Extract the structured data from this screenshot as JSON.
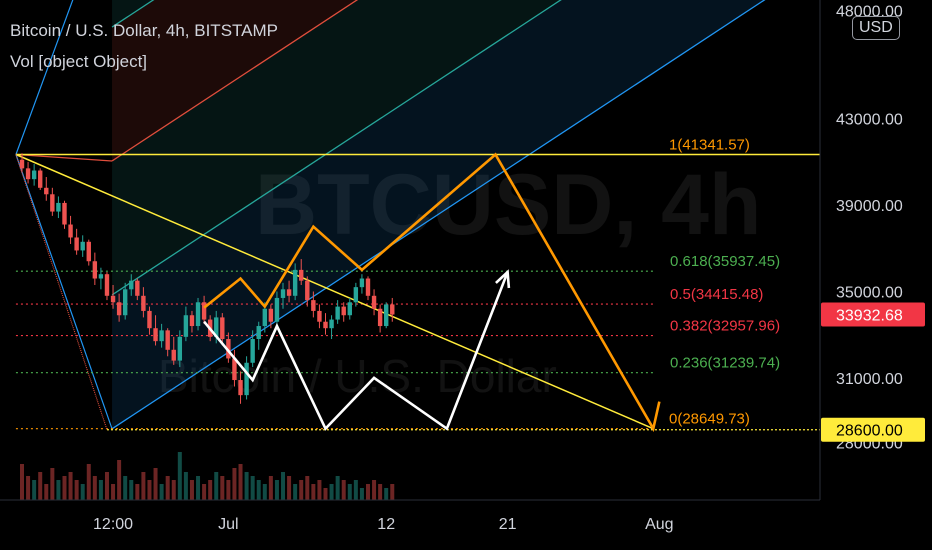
{
  "header": {
    "title": "Bitcoin / U.S. Dollar, 4h, BITSTAMP",
    "volume_label": "Vol [object Object]",
    "currency": "USD"
  },
  "watermark": {
    "symbol": "BTCUSD, 4h",
    "name": "Bitcoin / U.S. Dollar"
  },
  "colors": {
    "background": "#000000",
    "text": "#d1d4dc",
    "yellow": "#ffeb3b",
    "orange": "#ff9800",
    "pitchfork_blue": "#2196f3",
    "pitchfork_red": "#e04e3c",
    "pitchfork_teal": "#26a69a",
    "fib_green": "#4caf50",
    "fib_red": "#f23645",
    "candle_up": "#26a69a",
    "candle_down": "#ef5350",
    "last_price_bg": "#f23645",
    "level_bg": "#ffeb3b"
  },
  "chart_data": {
    "type": "candlestick",
    "symbol": "BTCUSD",
    "exchange": "BITSTAMP",
    "timeframe": "4h",
    "x_labels": [
      "12:00",
      "Jul",
      "12",
      "21",
      "Aug"
    ],
    "y_ticks": [
      48000,
      43000,
      39000,
      35000,
      31000,
      28000
    ],
    "y_tick_labels": [
      "48000.00",
      "43000.00",
      "39000.00",
      "35000.00",
      "31000.00",
      "28000.00"
    ],
    "last_price": 33932.68,
    "last_price_label": "33932.68",
    "horizontal_level": 28600,
    "horizontal_level_label": "28600.00",
    "fib_retracement": [
      {
        "ratio": 1,
        "price": 41341.57,
        "label": "1(41341.57)",
        "color": "#ff9800"
      },
      {
        "ratio": 0.618,
        "price": 35937.45,
        "label": "0.618(35937.45)",
        "color": "#4caf50"
      },
      {
        "ratio": 0.5,
        "price": 34415.48,
        "label": "0.5(34415.48)",
        "color": "#f23645"
      },
      {
        "ratio": 0.382,
        "price": 32957.96,
        "label": "0.382(32957.96)",
        "color": "#f23645"
      },
      {
        "ratio": 0.236,
        "price": 31239.74,
        "label": "0.236(31239.74)",
        "color": "#4caf50"
      },
      {
        "ratio": 0,
        "price": 28649.73,
        "label": "0(28649.73)",
        "color": "#ff9800"
      }
    ],
    "candles": [
      [
        41100,
        41400,
        40500,
        40700
      ],
      [
        40700,
        41000,
        40000,
        40200
      ],
      [
        40200,
        40900,
        39900,
        40600
      ],
      [
        40600,
        40700,
        39700,
        39800
      ],
      [
        39800,
        40300,
        39200,
        39500
      ],
      [
        39500,
        39800,
        38500,
        38700
      ],
      [
        38700,
        39400,
        38400,
        39100
      ],
      [
        39100,
        39200,
        37900,
        38100
      ],
      [
        38100,
        38500,
        37200,
        37500
      ],
      [
        37500,
        37900,
        36700,
        36900
      ],
      [
        36900,
        37600,
        36600,
        37300
      ],
      [
        37300,
        37400,
        36200,
        36400
      ],
      [
        36400,
        36800,
        35300,
        35600
      ],
      [
        35600,
        36100,
        35100,
        35800
      ],
      [
        35800,
        35900,
        34600,
        34800
      ],
      [
        34800,
        35300,
        34200,
        34500
      ],
      [
        34500,
        34900,
        33600,
        33900
      ],
      [
        33900,
        35400,
        33700,
        35100
      ],
      [
        35100,
        35800,
        34800,
        35500
      ],
      [
        35500,
        35600,
        34600,
        34800
      ],
      [
        34800,
        35200,
        33800,
        34100
      ],
      [
        34100,
        34300,
        33000,
        33300
      ],
      [
        33300,
        33900,
        32500,
        32700
      ],
      [
        32700,
        33500,
        32400,
        33200
      ],
      [
        33200,
        33300,
        32000,
        32300
      ],
      [
        32300,
        32900,
        31600,
        31800
      ],
      [
        31800,
        33200,
        31500,
        32900
      ],
      [
        32900,
        34300,
        32700,
        33900
      ],
      [
        33900,
        34100,
        33100,
        33400
      ],
      [
        33400,
        34700,
        33200,
        34500
      ],
      [
        34500,
        34800,
        33500,
        33700
      ],
      [
        33700,
        33900,
        32700,
        32900
      ],
      [
        32900,
        34100,
        32600,
        33800
      ],
      [
        33800,
        34000,
        32500,
        32800
      ],
      [
        32800,
        33100,
        31700,
        31900
      ],
      [
        31900,
        32300,
        30600,
        30900
      ],
      [
        30900,
        31300,
        29800,
        30200
      ],
      [
        30200,
        32000,
        30000,
        31700
      ],
      [
        31700,
        33200,
        31500,
        32800
      ],
      [
        32800,
        33600,
        32300,
        33400
      ],
      [
        33400,
        34500,
        33100,
        34200
      ],
      [
        34200,
        34400,
        33300,
        33600
      ],
      [
        33600,
        35000,
        33400,
        34700
      ],
      [
        34700,
        35400,
        34200,
        35100
      ],
      [
        35100,
        35500,
        34500,
        34800
      ],
      [
        34800,
        36300,
        34600,
        36000
      ],
      [
        36000,
        36500,
        35300,
        35500
      ],
      [
        35500,
        35700,
        34300,
        34600
      ],
      [
        34600,
        35000,
        33800,
        34100
      ],
      [
        34100,
        34400,
        33300,
        33600
      ],
      [
        33600,
        34000,
        33000,
        33300
      ],
      [
        33300,
        33900,
        32800,
        33700
      ],
      [
        33700,
        34600,
        33500,
        34300
      ],
      [
        34300,
        34500,
        33600,
        33900
      ],
      [
        33900,
        34700,
        33700,
        34500
      ],
      [
        34500,
        35400,
        34300,
        35200
      ],
      [
        35200,
        35800,
        34900,
        35600
      ],
      [
        35600,
        35700,
        34600,
        34800
      ],
      [
        34800,
        35100,
        33900,
        34200
      ],
      [
        34200,
        34400,
        33100,
        33400
      ],
      [
        33400,
        34500,
        33300,
        34400
      ],
      [
        34400,
        34700,
        33600,
        33932.68
      ]
    ],
    "volume": [
      9,
      6,
      5,
      7,
      4,
      8,
      5,
      6,
      7,
      5,
      4,
      9,
      6,
      5,
      7,
      4,
      10,
      6,
      5,
      4,
      7,
      5,
      8,
      4,
      6,
      5,
      12,
      7,
      5,
      6,
      4,
      5,
      7,
      6,
      5,
      8,
      9,
      7,
      6,
      5,
      4,
      6,
      5,
      7,
      6,
      4,
      5,
      6,
      4,
      5,
      3,
      4,
      6,
      5,
      4,
      5,
      3,
      4,
      5,
      4,
      3,
      4
    ],
    "projection_orange": [
      [
        30,
        34250
      ],
      [
        36,
        35600
      ],
      [
        40,
        34300
      ],
      [
        48,
        38000
      ],
      [
        56,
        36000
      ],
      [
        78,
        41341.57
      ],
      [
        104,
        28649.73
      ],
      [
        105,
        29900
      ]
    ],
    "projection_white": [
      [
        30,
        33600
      ],
      [
        38,
        30900
      ],
      [
        42,
        33400
      ],
      [
        50,
        28650
      ],
      [
        58,
        31000
      ],
      [
        70,
        28650
      ],
      [
        80,
        35900
      ]
    ],
    "yellow_trendline": [
      [
        -1,
        41341.57
      ],
      [
        104,
        28649.73
      ]
    ],
    "fib_anchor_line": [
      [
        -1,
        41341.57
      ],
      [
        14,
        28600
      ]
    ],
    "pitchfork": {
      "pivot": [
        -1,
        41341.57
      ],
      "slope_per_bar": 185,
      "lines": [
        {
          "offset": 0,
          "color": "#2196f3"
        },
        {
          "offset": 6200,
          "color": "#26a69a"
        },
        {
          "offset": 12400,
          "color": "#e04e3c"
        },
        {
          "offset": 18600,
          "color": "#26a69a"
        },
        {
          "offset": 24800,
          "color": "#2196f3"
        }
      ],
      "zones": [
        {
          "from": 0,
          "to": 6200,
          "color": "#2196f3"
        },
        {
          "from": 6200,
          "to": 12400,
          "color": "#26a69a"
        },
        {
          "from": 12400,
          "to": 18600,
          "color": "#e04e3c"
        },
        {
          "from": 18600,
          "to": 24800,
          "color": "#26a69a"
        }
      ]
    }
  }
}
